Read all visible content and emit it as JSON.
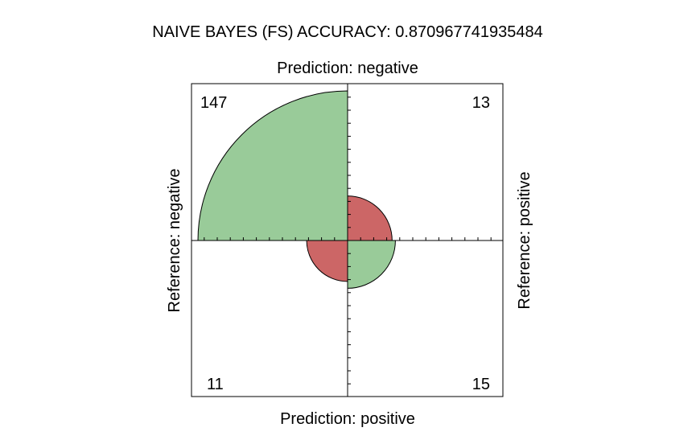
{
  "title": "NAIVE BAYES (FS) ACCURACY: 0.870967741935484",
  "labels": {
    "top": "Prediction: negative",
    "bottom": "Prediction: positive",
    "left": "Reference: negative",
    "right": "Reference: positive"
  },
  "colors": {
    "correct": "#99CB99",
    "incorrect": "#CC6666",
    "axis": "#000000",
    "background": "#ffffff"
  },
  "chart_data": {
    "type": "fourfold",
    "title": "NAIVE BAYES (FS) ACCURACY: 0.870967741935484",
    "accuracy": "0.870967741935484",
    "cells": [
      {
        "quadrant": "top-left",
        "prediction": "negative",
        "reference": "negative",
        "value": 147,
        "outcome": "correct"
      },
      {
        "quadrant": "top-right",
        "prediction": "negative",
        "reference": "positive",
        "value": 13,
        "outcome": "incorrect"
      },
      {
        "quadrant": "bottom-left",
        "prediction": "positive",
        "reference": "negative",
        "value": 11,
        "outcome": "incorrect"
      },
      {
        "quadrant": "bottom-right",
        "prediction": "positive",
        "reference": "positive",
        "value": 15,
        "outcome": "correct"
      }
    ],
    "row_variable": "Prediction",
    "column_variable": "Reference",
    "grid": false
  }
}
